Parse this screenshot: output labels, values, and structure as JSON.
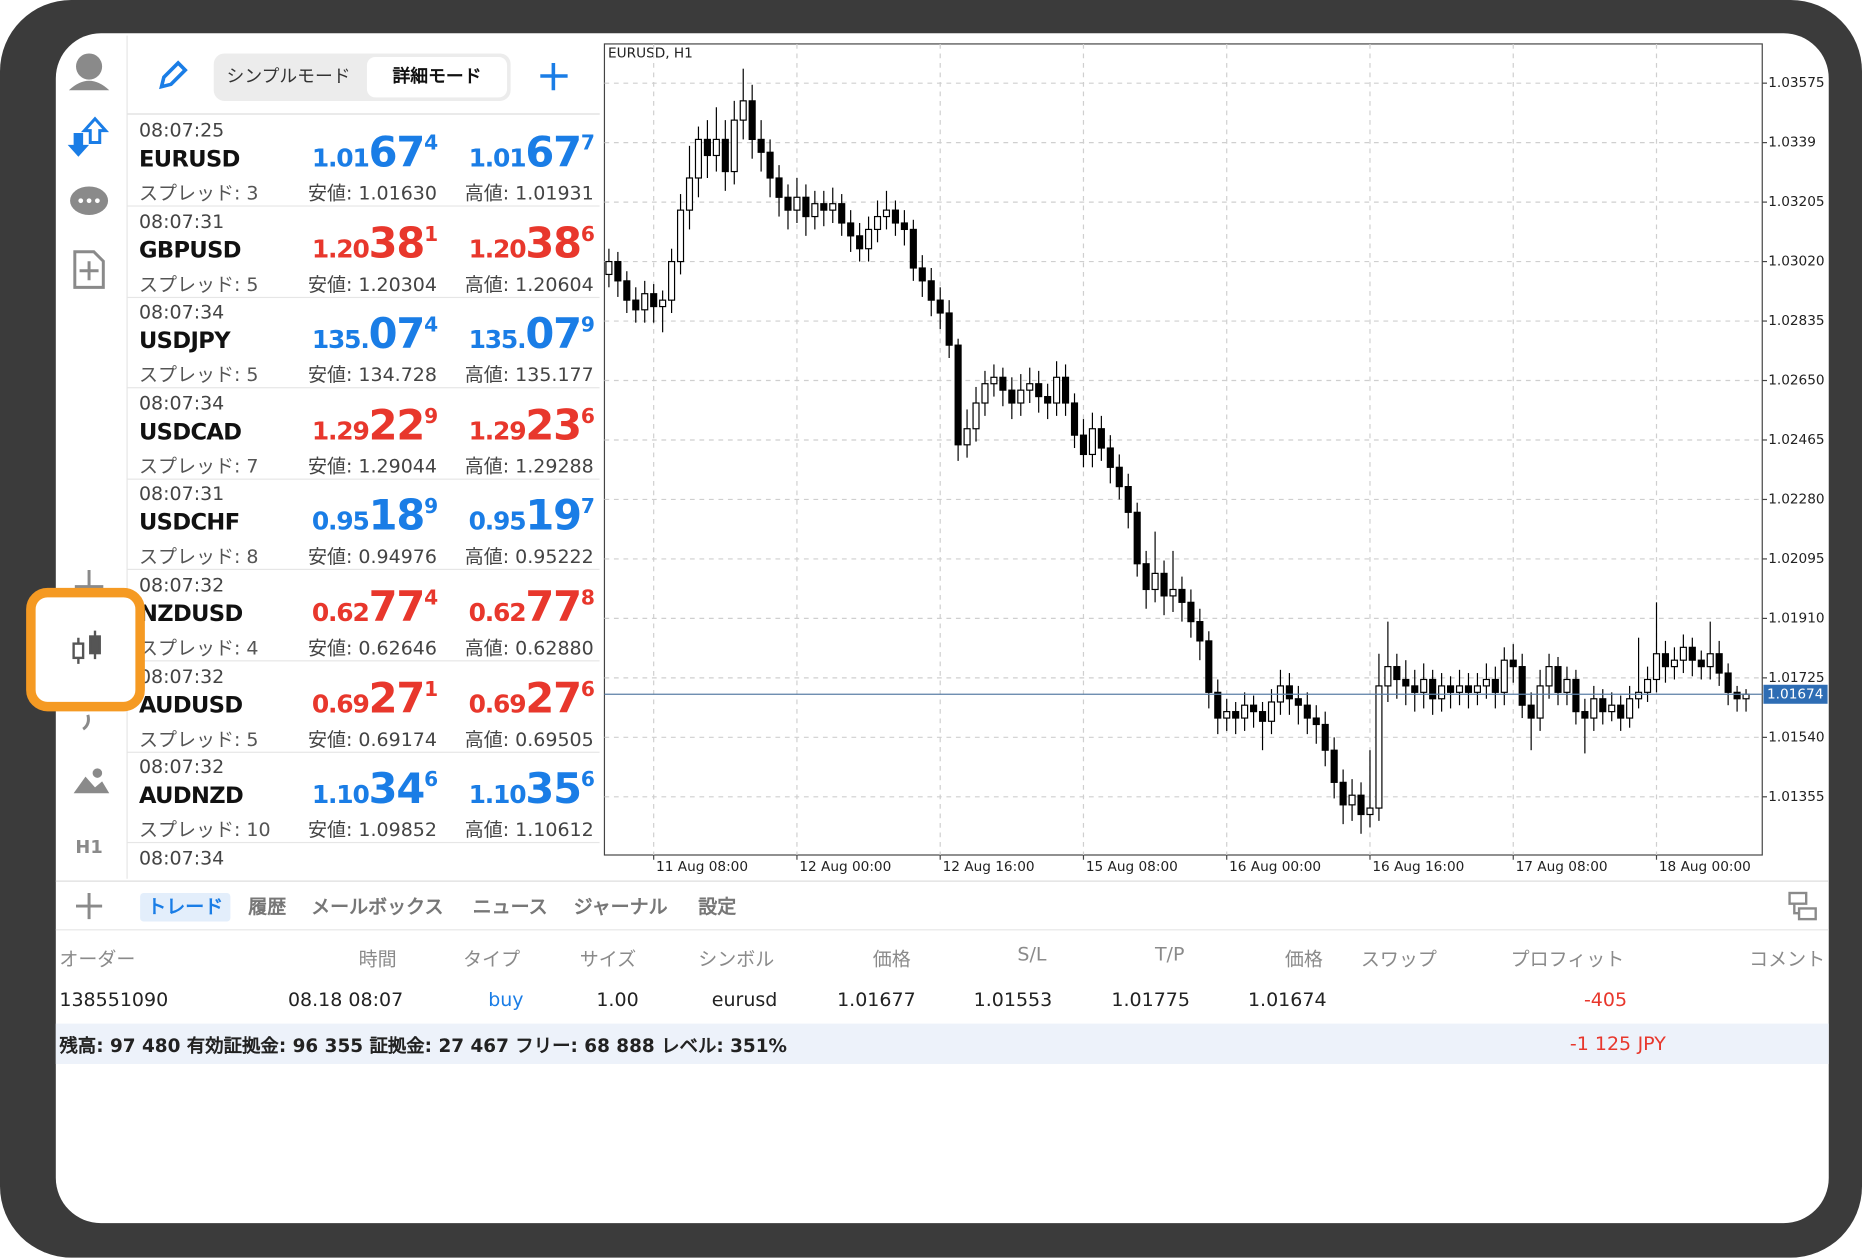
{
  "top_bar": {
    "modes": [
      "シンプルモード",
      "詳細モード"
    ]
  },
  "sidebar": {
    "timeframe": "H1"
  },
  "quotes": [
    {
      "time": "08:07:25",
      "symbol": "EURUSD",
      "spread": "スプレッド: 3",
      "bid": [
        "1.01",
        "67",
        "4"
      ],
      "ask": [
        "1.01",
        "67",
        "7"
      ],
      "low": "安値: 1.01630",
      "high": "高値: 1.01931",
      "color": "#1a7de6"
    },
    {
      "time": "08:07:31",
      "symbol": "GBPUSD",
      "spread": "スプレッド: 5",
      "bid": [
        "1.20",
        "38",
        "1"
      ],
      "ask": [
        "1.20",
        "38",
        "6"
      ],
      "low": "安値: 1.20304",
      "high": "高値: 1.20604",
      "color": "#e8372c"
    },
    {
      "time": "08:07:34",
      "symbol": "USDJPY",
      "spread": "スプレッド: 5",
      "bid": [
        "135.",
        "07",
        "4"
      ],
      "ask": [
        "135.",
        "07",
        "9"
      ],
      "low": "安値: 134.728",
      "high": "高値: 135.177",
      "color": "#1a7de6"
    },
    {
      "time": "08:07:34",
      "symbol": "USDCAD",
      "spread": "スプレッド: 7",
      "bid": [
        "1.29",
        "22",
        "9"
      ],
      "ask": [
        "1.29",
        "23",
        "6"
      ],
      "low": "安値: 1.29044",
      "high": "高値: 1.29288",
      "color": "#e8372c"
    },
    {
      "time": "08:07:31",
      "symbol": "USDCHF",
      "spread": "スプレッド: 8",
      "bid": [
        "0.95",
        "18",
        "9"
      ],
      "ask": [
        "0.95",
        "19",
        "7"
      ],
      "low": "安値: 0.94976",
      "high": "高値: 0.95222",
      "color": "#1a7de6"
    },
    {
      "time": "08:07:32",
      "symbol": "NZDUSD",
      "spread": "スプレッド: 4",
      "bid": [
        "0.62",
        "77",
        "4"
      ],
      "ask": [
        "0.62",
        "77",
        "8"
      ],
      "low": "安値: 0.62646",
      "high": "高値: 0.62880",
      "color": "#e8372c"
    },
    {
      "time": "08:07:32",
      "symbol": "AUDUSD",
      "spread": "スプレッド: 5",
      "bid": [
        "0.69",
        "27",
        "1"
      ],
      "ask": [
        "0.69",
        "27",
        "6"
      ],
      "low": "安値: 0.69174",
      "high": "高値: 0.69505",
      "color": "#e8372c"
    },
    {
      "time": "08:07:32",
      "symbol": "AUDNZD",
      "spread": "スプレッド: 10",
      "bid": [
        "1.10",
        "34",
        "6"
      ],
      "ask": [
        "1.10",
        "35",
        "6"
      ],
      "low": "安値: 1.09852",
      "high": "高値: 1.10612",
      "color": "#1a7de6"
    },
    {
      "time": "08:07:34"
    }
  ],
  "chart_data": {
    "type": "candlestick",
    "title": "EURUSD, H1",
    "ylim": [
      1.01174,
      1.03697
    ],
    "yticks": [
      1.03575,
      1.0339,
      1.03205,
      {
        "value": 1.0302,
        "label": "1.03020"
      },
      1.02835,
      {
        "value": 1.0265,
        "label": "1.02650"
      },
      1.02465,
      {
        "value": 1.0228,
        "label": "1.02280"
      },
      1.02095,
      {
        "value": 1.0191,
        "label": "1.01910"
      },
      1.01725,
      {
        "value": 1.0154,
        "label": "1.01540"
      },
      1.01355
    ],
    "xticks": [
      {
        "value": 5,
        "label": "11 Aug 08:00"
      },
      {
        "value": 21,
        "label": "12 Aug 00:00"
      },
      {
        "value": 37,
        "label": "12 Aug 16:00"
      },
      {
        "value": 53,
        "label": "15 Aug 08:00"
      },
      {
        "value": 69,
        "label": "16 Aug 00:00"
      },
      {
        "value": 85,
        "label": "16 Aug 16:00"
      },
      {
        "value": 101,
        "label": "17 Aug 08:00"
      },
      {
        "value": 117,
        "label": "18 Aug 00:00"
      }
    ],
    "grid": true,
    "current_price": 1.01674,
    "up_color": "#ffffff",
    "down_color": "#000000",
    "candles": [
      [
        1.0298,
        1.0306,
        1.0294,
        1.0302
      ],
      [
        1.0302,
        1.0305,
        1.0291,
        1.0296
      ],
      [
        1.0296,
        1.0299,
        1.0286,
        1.029
      ],
      [
        1.029,
        1.0294,
        1.0283,
        1.0287
      ],
      [
        1.0287,
        1.0296,
        1.0283,
        1.0292
      ],
      [
        1.0292,
        1.0295,
        1.0283,
        1.0288
      ],
      [
        1.0288,
        1.0293,
        1.028,
        1.029
      ],
      [
        1.029,
        1.0306,
        1.0286,
        1.0302
      ],
      [
        1.0302,
        1.0323,
        1.0298,
        1.0318
      ],
      [
        1.0318,
        1.0338,
        1.0312,
        1.0328
      ],
      [
        1.0328,
        1.0344,
        1.0322,
        1.034
      ],
      [
        1.034,
        1.0346,
        1.0328,
        1.0335
      ],
      [
        1.0335,
        1.035,
        1.033,
        1.034
      ],
      [
        1.034,
        1.0346,
        1.0324,
        1.033
      ],
      [
        1.033,
        1.0352,
        1.0326,
        1.0346
      ],
      [
        1.0346,
        1.0362,
        1.034,
        1.0352
      ],
      [
        1.0352,
        1.0357,
        1.0334,
        1.034
      ],
      [
        1.034,
        1.0346,
        1.033,
        1.0336
      ],
      [
        1.0336,
        1.034,
        1.0322,
        1.0328
      ],
      [
        1.0328,
        1.0332,
        1.0316,
        1.0322
      ],
      [
        1.0322,
        1.0326,
        1.0312,
        1.0318
      ],
      [
        1.0318,
        1.0328,
        1.0314,
        1.0322
      ],
      [
        1.0322,
        1.0326,
        1.031,
        1.0316
      ],
      [
        1.0316,
        1.0324,
        1.0312,
        1.032
      ],
      [
        1.032,
        1.0324,
        1.0313,
        1.0318
      ],
      [
        1.0318,
        1.0325,
        1.0314,
        1.032
      ],
      [
        1.032,
        1.0323,
        1.031,
        1.0314
      ],
      [
        1.0314,
        1.0318,
        1.0305,
        1.031
      ],
      [
        1.031,
        1.0314,
        1.0302,
        1.0306
      ],
      [
        1.0306,
        1.0316,
        1.0302,
        1.0312
      ],
      [
        1.0312,
        1.0321,
        1.0308,
        1.0316
      ],
      [
        1.0316,
        1.0324,
        1.0312,
        1.0318
      ],
      [
        1.0318,
        1.0321,
        1.031,
        1.0314
      ],
      [
        1.0314,
        1.0318,
        1.0307,
        1.0312
      ],
      [
        1.0312,
        1.0315,
        1.0296,
        1.03
      ],
      [
        1.03,
        1.0304,
        1.0291,
        1.0296
      ],
      [
        1.0296,
        1.03,
        1.0285,
        1.029
      ],
      [
        1.029,
        1.0294,
        1.0281,
        1.0286
      ],
      [
        1.0286,
        1.029,
        1.0272,
        1.0276
      ],
      [
        1.0276,
        1.0278,
        1.024,
        1.0245
      ],
      [
        1.0245,
        1.0256,
        1.0241,
        1.025
      ],
      [
        1.025,
        1.0263,
        1.0246,
        1.0258
      ],
      [
        1.0258,
        1.0268,
        1.0254,
        1.0264
      ],
      [
        1.0264,
        1.027,
        1.026,
        1.0266
      ],
      [
        1.0266,
        1.0269,
        1.0257,
        1.0262
      ],
      [
        1.0262,
        1.0266,
        1.0253,
        1.0258
      ],
      [
        1.0258,
        1.0267,
        1.0254,
        1.0262
      ],
      [
        1.0262,
        1.0269,
        1.0258,
        1.0264
      ],
      [
        1.0264,
        1.0268,
        1.0255,
        1.026
      ],
      [
        1.026,
        1.0264,
        1.0253,
        1.0258
      ],
      [
        1.0258,
        1.0271,
        1.0254,
        1.0266
      ],
      [
        1.0266,
        1.027,
        1.0254,
        1.0258
      ],
      [
        1.0258,
        1.0261,
        1.0244,
        1.0248
      ],
      [
        1.0248,
        1.0253,
        1.0238,
        1.0242
      ],
      [
        1.0242,
        1.0255,
        1.0238,
        1.025
      ],
      [
        1.025,
        1.0254,
        1.024,
        1.0244
      ],
      [
        1.0244,
        1.0248,
        1.0233,
        1.0238
      ],
      [
        1.0238,
        1.0242,
        1.0228,
        1.0232
      ],
      [
        1.0232,
        1.0236,
        1.0219,
        1.0224
      ],
      [
        1.0224,
        1.0227,
        1.0204,
        1.0208
      ],
      [
        1.0208,
        1.0212,
        1.0194,
        1.02
      ],
      [
        1.02,
        1.0218,
        1.0196,
        1.0205
      ],
      [
        1.0205,
        1.0209,
        1.0192,
        1.0198
      ],
      [
        1.0198,
        1.0212,
        1.0193,
        1.02
      ],
      [
        1.02,
        1.0204,
        1.019,
        1.0196
      ],
      [
        1.0196,
        1.02,
        1.0185,
        1.019
      ],
      [
        1.019,
        1.0194,
        1.0178,
        1.0184
      ],
      [
        1.0184,
        1.0187,
        1.0163,
        1.0168
      ],
      [
        1.0168,
        1.0172,
        1.0155,
        1.016
      ],
      [
        1.016,
        1.0166,
        1.0156,
        1.0162
      ],
      [
        1.0162,
        1.0165,
        1.0155,
        1.016
      ],
      [
        1.016,
        1.0168,
        1.0156,
        1.0164
      ],
      [
        1.0164,
        1.0167,
        1.0157,
        1.0162
      ],
      [
        1.0162,
        1.0165,
        1.015,
        1.0159
      ],
      [
        1.0159,
        1.0169,
        1.0155,
        1.0165
      ],
      [
        1.0165,
        1.0175,
        1.0161,
        1.017
      ],
      [
        1.017,
        1.0174,
        1.0161,
        1.0166
      ],
      [
        1.0166,
        1.017,
        1.0158,
        1.0164
      ],
      [
        1.0164,
        1.0168,
        1.0155,
        1.016
      ],
      [
        1.016,
        1.0164,
        1.0152,
        1.0158
      ],
      [
        1.0158,
        1.0162,
        1.0145,
        1.015
      ],
      [
        1.015,
        1.0154,
        1.0135,
        1.014
      ],
      [
        1.014,
        1.0144,
        1.0127,
        1.0133
      ],
      [
        1.0133,
        1.0141,
        1.0128,
        1.0136
      ],
      [
        1.0136,
        1.014,
        1.0124,
        1.013
      ],
      [
        1.013,
        1.015,
        1.0126,
        1.0132
      ],
      [
        1.0132,
        1.018,
        1.0128,
        1.017
      ],
      [
        1.017,
        1.019,
        1.0165,
        1.0176
      ],
      [
        1.0176,
        1.018,
        1.0166,
        1.0172
      ],
      [
        1.0172,
        1.0178,
        1.0164,
        1.017
      ],
      [
        1.017,
        1.0175,
        1.0162,
        1.0168
      ],
      [
        1.0168,
        1.0177,
        1.0163,
        1.0172
      ],
      [
        1.0172,
        1.0175,
        1.0161,
        1.0166
      ],
      [
        1.0166,
        1.0174,
        1.0162,
        1.017
      ],
      [
        1.017,
        1.0173,
        1.0163,
        1.0168
      ],
      [
        1.0168,
        1.0175,
        1.0164,
        1.017
      ],
      [
        1.017,
        1.0174,
        1.0163,
        1.0168
      ],
      [
        1.0168,
        1.0174,
        1.0164,
        1.017
      ],
      [
        1.017,
        1.0177,
        1.0166,
        1.0172
      ],
      [
        1.0172,
        1.0176,
        1.0163,
        1.0168
      ],
      [
        1.0168,
        1.0182,
        1.0164,
        1.0178
      ],
      [
        1.0178,
        1.0183,
        1.0171,
        1.0176
      ],
      [
        1.0176,
        1.018,
        1.016,
        1.0164
      ],
      [
        1.0164,
        1.0168,
        1.015,
        1.016
      ],
      [
        1.016,
        1.0175,
        1.0156,
        1.017
      ],
      [
        1.017,
        1.018,
        1.0166,
        1.0176
      ],
      [
        1.0176,
        1.0179,
        1.0164,
        1.0168
      ],
      [
        1.0168,
        1.0176,
        1.0164,
        1.0172
      ],
      [
        1.0172,
        1.0175,
        1.0158,
        1.0162
      ],
      [
        1.0162,
        1.0166,
        1.0149,
        1.016
      ],
      [
        1.016,
        1.017,
        1.0156,
        1.0166
      ],
      [
        1.0166,
        1.0169,
        1.0158,
        1.0162
      ],
      [
        1.0162,
        1.0168,
        1.0159,
        1.0164
      ],
      [
        1.0164,
        1.0167,
        1.0156,
        1.016
      ],
      [
        1.016,
        1.017,
        1.0157,
        1.0166
      ],
      [
        1.0166,
        1.0185,
        1.0163,
        1.0168
      ],
      [
        1.0168,
        1.0176,
        1.0165,
        1.0172
      ],
      [
        1.0172,
        1.0196,
        1.0168,
        1.018
      ],
      [
        1.018,
        1.0184,
        1.0171,
        1.0176
      ],
      [
        1.0176,
        1.0182,
        1.0172,
        1.0178
      ],
      [
        1.0178,
        1.0186,
        1.0174,
        1.0182
      ],
      [
        1.0182,
        1.0185,
        1.0173,
        1.0178
      ],
      [
        1.0178,
        1.0181,
        1.0172,
        1.0176
      ],
      [
        1.0176,
        1.019,
        1.0172,
        1.018
      ],
      [
        1.018,
        1.0184,
        1.017,
        1.0174
      ],
      [
        1.0174,
        1.0177,
        1.0164,
        1.0168
      ],
      [
        1.0168,
        1.017,
        1.0162,
        1.0166
      ],
      [
        1.0166,
        1.0169,
        1.0162,
        1.01674
      ]
    ]
  },
  "bottom_tabs": [
    "トレード",
    "履歴",
    "メールボックス",
    "ニュース",
    "ジャーナル",
    "設定"
  ],
  "trade_table": {
    "headers": [
      "オーダー",
      "時間",
      "タイプ",
      "サイズ",
      "シンボル",
      "価格",
      "S/L",
      "T/P",
      "価格",
      "スワップ",
      "プロフィット",
      "コメント"
    ],
    "rows": [
      {
        "order": "138551090",
        "time": "08.18 08:07",
        "type": "buy",
        "size": "1.00",
        "symbol": "eurusd",
        "price": "1.01677",
        "sl": "1.01553",
        "tp": "1.01775",
        "current_price": "1.01674",
        "profit": "-405"
      }
    ]
  },
  "summary": {
    "text": "残高: 97 480 有効証拠金: 96 355 証拠金: 27 467 フリー: 68 888 レベル: 351%",
    "total_profit": "-1 125",
    "currency": "JPY"
  }
}
